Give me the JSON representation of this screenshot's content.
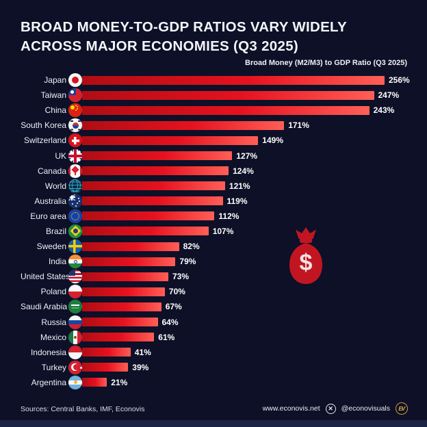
{
  "title": {
    "line1": "BROAD MONEY-TO-GDP RATIOS VARY WIDELY",
    "line2": "ACROSS MAJOR ECONOMIES (Q3 2025)"
  },
  "subtitle": "Broad Money (M2/M3) to GDP Ratio (Q3 2025)",
  "chart_data": {
    "type": "bar",
    "orientation": "horizontal",
    "title": "Broad Money (M2/M3) to GDP Ratio (Q3 2025)",
    "unit": "%",
    "xlim": [
      0,
      256
    ],
    "grid": false,
    "legend": false,
    "categories": [
      "Japan",
      "Taiwan",
      "China",
      "South Korea",
      "Switzerland",
      "UK",
      "Canada",
      "World",
      "Australia",
      "Euro area",
      "Brazil",
      "Sweden",
      "India",
      "United States",
      "Poland",
      "Saudi Arabia",
      "Russia",
      "Mexico",
      "Indonesia",
      "Turkey",
      "Argentina"
    ],
    "values": [
      256,
      247,
      243,
      171,
      149,
      127,
      124,
      121,
      119,
      112,
      107,
      82,
      79,
      73,
      70,
      67,
      64,
      61,
      41,
      39,
      21
    ],
    "value_labels": [
      "256%",
      "247%",
      "243%",
      "171%",
      "149%",
      "127%",
      "124%",
      "121%",
      "119%",
      "112%",
      "107%",
      "82%",
      "79%",
      "73%",
      "70%",
      "67%",
      "64%",
      "61%",
      "41%",
      "39%",
      "21%"
    ],
    "flag_icons": [
      "japan",
      "taiwan",
      "china",
      "south-korea",
      "switzerland",
      "uk",
      "canada",
      "world",
      "australia",
      "euro-area",
      "brazil",
      "sweden",
      "india",
      "united-states",
      "poland",
      "saudi-arabia",
      "russia",
      "mexico",
      "indonesia",
      "turkey",
      "argentina"
    ]
  },
  "decor": {
    "money_bag_icon": "money-bag-dollar-icon",
    "money_bag_symbol": "$"
  },
  "footer": {
    "sources": "Sources: Central Banks, IMF, Econovis",
    "website": "www.econovis.net",
    "social_icon": "x-logo-icon",
    "social_icon_glyph": "✕",
    "social_handle": "@econovisuals",
    "brand_badge": "EV"
  },
  "colors": {
    "background": "#0d1027",
    "bar_gradient_start": "#b00d14",
    "bar_gradient_mid": "#e5121f",
    "bar_gradient_end": "#ff5f57",
    "money_bag_red": "#c11622",
    "text": "#f5f6fa",
    "brand_gold": "#e2ab45",
    "bottom_strip": "#1d2343"
  }
}
